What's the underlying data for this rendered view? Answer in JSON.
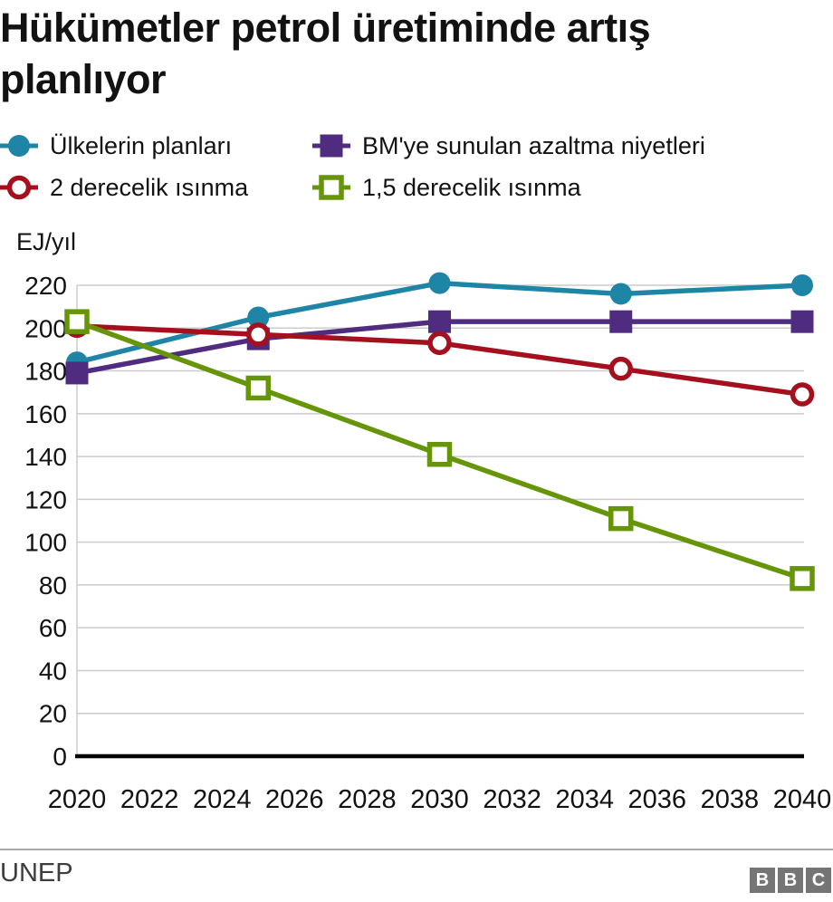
{
  "title": "Hükümetler petrol üretiminde artış planlıyor",
  "source": "UNEP",
  "logo": {
    "letters": [
      "B",
      "B",
      "C"
    ]
  },
  "chart_data": {
    "type": "line",
    "title": "Hükümetler petrol üretiminde artış planlıyor",
    "ylabel": "EJ/yıl",
    "xlabel": "",
    "x": [
      2020,
      2025,
      2030,
      2035,
      2040
    ],
    "xticks": [
      2020,
      2022,
      2024,
      2026,
      2028,
      2030,
      2032,
      2034,
      2036,
      2038,
      2040
    ],
    "xlim": [
      2020,
      2040
    ],
    "ylim": [
      0,
      220
    ],
    "ytick_step": 20,
    "grid": true,
    "grid_color": "#cccccc",
    "axis_color": "#000000",
    "legend_position": "top",
    "series": [
      {
        "id": "country-plans",
        "name": "Ülkelerin planları",
        "color": "#1e85a7",
        "marker": "circle",
        "marker_fill": "solid",
        "values": [
          184,
          205,
          221,
          216,
          220
        ]
      },
      {
        "id": "un-pledges",
        "name": "BM'ye sunulan azaltma niyetleri",
        "color": "#4f2c80",
        "marker": "square",
        "marker_fill": "solid",
        "values": [
          179,
          195,
          203,
          203,
          203
        ]
      },
      {
        "id": "two-degree-warming",
        "name": "2 derecelik ısınma",
        "color": "#a5101e",
        "marker": "circle",
        "marker_fill": "open",
        "values": [
          201,
          197,
          193,
          181,
          169
        ]
      },
      {
        "id": "one-point-five-degree-warming",
        "name": "1,5 derecelik ısınma",
        "color": "#66950a",
        "marker": "square",
        "marker_fill": "open",
        "values": [
          203,
          172,
          141,
          111,
          83
        ]
      }
    ]
  }
}
